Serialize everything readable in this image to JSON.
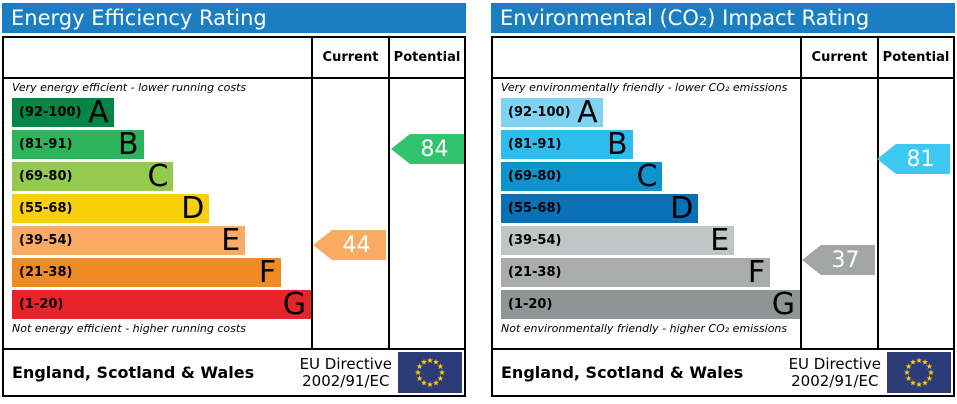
{
  "columns": {
    "current": "Current",
    "potential": "Potential"
  },
  "footer": {
    "region": "England, Scotland & Wales",
    "directive_line1": "EU Directive",
    "directive_line2": "2002/91/EC"
  },
  "colors": {
    "title_bar": "#1b7ec2",
    "border": "#000000",
    "eu_flag_blue": "#2b3c78",
    "eu_star_yellow": "#ffcc00",
    "arrow_text": "#ffffff"
  },
  "panels": [
    {
      "title": "Energy Efficiency Rating",
      "top_note": "Very energy efficient - lower running costs",
      "bottom_note": "Not energy efficient - higher running costs",
      "bands": [
        {
          "letter": "A",
          "range": "(92-100)",
          "color": "#028546",
          "width_pct": 34
        },
        {
          "letter": "B",
          "range": "(81-91)",
          "color": "#2db35a",
          "width_pct": 44
        },
        {
          "letter": "C",
          "range": "(69-80)",
          "color": "#94ca4e",
          "width_pct": 54
        },
        {
          "letter": "D",
          "range": "(55-68)",
          "color": "#f8cf0b",
          "width_pct": 66
        },
        {
          "letter": "E",
          "range": "(39-54)",
          "color": "#f9ab63",
          "width_pct": 78
        },
        {
          "letter": "F",
          "range": "(21-38)",
          "color": "#ee8b22",
          "width_pct": 90
        },
        {
          "letter": "G",
          "range": "(1-20)",
          "color": "#e8232a",
          "width_pct": 100
        }
      ],
      "current": {
        "value": "44",
        "color": "#f9ab63"
      },
      "potential": {
        "value": "84",
        "color": "#32c36e"
      }
    },
    {
      "title": "Environmental (CO₂) Impact Rating",
      "top_note": "Very environmentally friendly - lower CO₂ emissions",
      "bottom_note": "Not environmentally friendly - higher CO₂ emissions",
      "bands": [
        {
          "letter": "A",
          "range": "(92-100)",
          "color": "#7ed3f2",
          "width_pct": 34
        },
        {
          "letter": "B",
          "range": "(81-91)",
          "color": "#2cbcee",
          "width_pct": 44
        },
        {
          "letter": "C",
          "range": "(69-80)",
          "color": "#0d93ce",
          "width_pct": 54
        },
        {
          "letter": "D",
          "range": "(55-68)",
          "color": "#0a70b5",
          "width_pct": 66
        },
        {
          "letter": "E",
          "range": "(39-54)",
          "color": "#c1c4c4",
          "width_pct": 78
        },
        {
          "letter": "F",
          "range": "(21-38)",
          "color": "#a9acab",
          "width_pct": 90
        },
        {
          "letter": "G",
          "range": "(1-20)",
          "color": "#909495",
          "width_pct": 100
        }
      ],
      "current": {
        "value": "37",
        "color": "#a3a6a5"
      },
      "potential": {
        "value": "81",
        "color": "#3ec9f2"
      }
    }
  ],
  "chart_data": [
    {
      "type": "bar",
      "orientation": "horizontal",
      "title": "Energy Efficiency Rating",
      "categories": [
        "A",
        "B",
        "C",
        "D",
        "E",
        "F",
        "G"
      ],
      "category_ranges": [
        "92-100",
        "81-91",
        "69-80",
        "55-68",
        "39-54",
        "21-38",
        "1-20"
      ],
      "values": [
        34,
        44,
        54,
        66,
        78,
        90,
        100
      ],
      "value_unit": "percent of scale width",
      "current": 44,
      "potential": 84,
      "top_label": "Very energy efficient - lower running costs",
      "bottom_label": "Not energy efficient - higher running costs",
      "legend_position": "none"
    },
    {
      "type": "bar",
      "orientation": "horizontal",
      "title": "Environmental (CO₂) Impact Rating",
      "categories": [
        "A",
        "B",
        "C",
        "D",
        "E",
        "F",
        "G"
      ],
      "category_ranges": [
        "92-100",
        "81-91",
        "69-80",
        "55-68",
        "39-54",
        "21-38",
        "1-20"
      ],
      "values": [
        34,
        44,
        54,
        66,
        78,
        90,
        100
      ],
      "value_unit": "percent of scale width",
      "current": 37,
      "potential": 81,
      "top_label": "Very environmentally friendly - lower CO₂ emissions",
      "bottom_label": "Not environmentally friendly - higher CO₂ emissions",
      "legend_position": "none"
    }
  ]
}
